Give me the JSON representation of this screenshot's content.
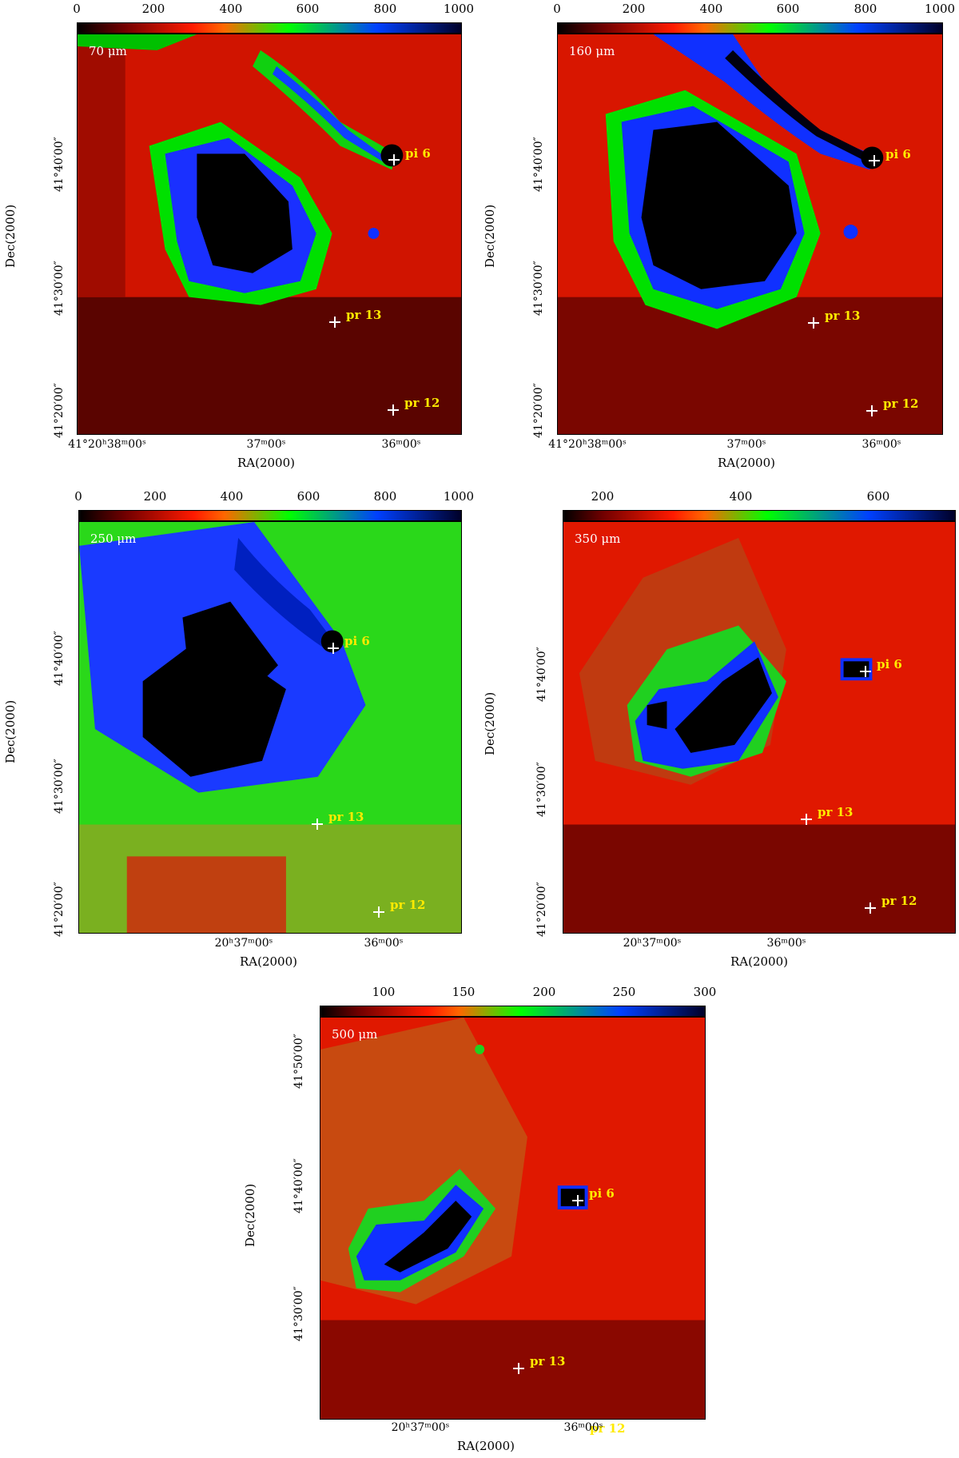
{
  "axis_labels": {
    "ra": "RA(2000)",
    "dec": "Dec(2000)"
  },
  "dec_ticks": {
    "d50": "41°50′00″",
    "d40": "41°40′00″",
    "d30": "41°30′00″",
    "d20": "41°20′00″"
  },
  "ra_ticks": {
    "h2038": "41°20ʰ38ᵐ00ˢ",
    "m37": "37ᵐ00ˢ",
    "m36": "36ᵐ00ˢ",
    "h2037": "20ʰ37ᵐ00ˢ"
  },
  "markers": {
    "pi6": "pi 6",
    "pr13": "pr 13",
    "pr12": "pr 12"
  },
  "panels": [
    {
      "wavelength": "70 μm",
      "colorbar_ticks": [
        "0",
        "200",
        "400",
        "600",
        "800",
        "1000"
      ]
    },
    {
      "wavelength": "160 μm",
      "colorbar_ticks": [
        "0",
        "200",
        "400",
        "600",
        "800",
        "1000"
      ]
    },
    {
      "wavelength": "250 μm",
      "colorbar_ticks": [
        "0",
        "200",
        "400",
        "600",
        "800",
        "1000"
      ]
    },
    {
      "wavelength": "350 μm",
      "colorbar_ticks": [
        "200",
        "400",
        "600"
      ]
    },
    {
      "wavelength": "500 μm",
      "colorbar_ticks": [
        "100",
        "150",
        "200",
        "250",
        "300"
      ]
    }
  ],
  "colors": {
    "colorbar": [
      "#000000",
      "#6b0000",
      "#ff0000",
      "#00ff00",
      "#0000ff",
      "#000014"
    ],
    "marker": "#ffffff",
    "label": "#ffea00"
  }
}
